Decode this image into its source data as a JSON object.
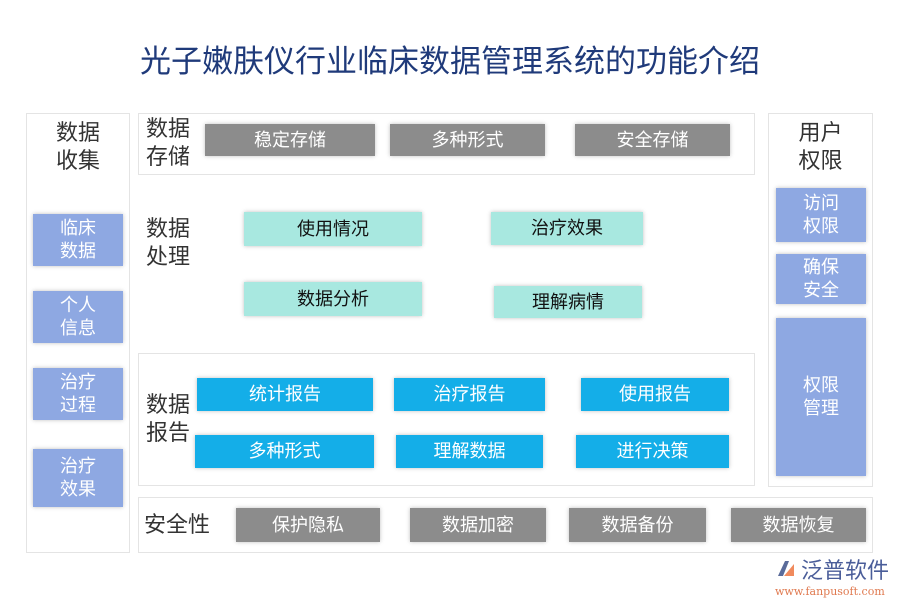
{
  "title": "光子嫩肤仪行业临床数据管理系统的功能介绍",
  "collect": {
    "label": "数据收集",
    "items": [
      "临床数据",
      "个人信息",
      "治疗过程",
      "治疗效果"
    ]
  },
  "storage": {
    "label": "数据存储",
    "items": [
      "稳定存储",
      "多种形式",
      "安全存储"
    ]
  },
  "processing": {
    "label": "数据处理",
    "items": [
      "使用情况",
      "治疗效果",
      "数据分析",
      "理解病情"
    ]
  },
  "report": {
    "label": "数据报告",
    "items": [
      "统计报告",
      "治疗报告",
      "使用报告",
      "多种形式",
      "理解数据",
      "进行决策"
    ]
  },
  "security": {
    "label": "安全性",
    "items": [
      "保护隐私",
      "数据加密",
      "数据备份",
      "数据恢复"
    ]
  },
  "permission": {
    "label": "用户权限",
    "items": [
      "访问权限",
      "确保安全",
      "权限管理"
    ]
  },
  "logo": {
    "name": "泛普软件",
    "url": "www.fanpusoft.com"
  },
  "colors": {
    "title": "#1f3a7a",
    "gray": "#8c8c8c",
    "teal": "#a8e8e0",
    "blue": "#14aee8",
    "lavender": "#8ea8e2"
  }
}
